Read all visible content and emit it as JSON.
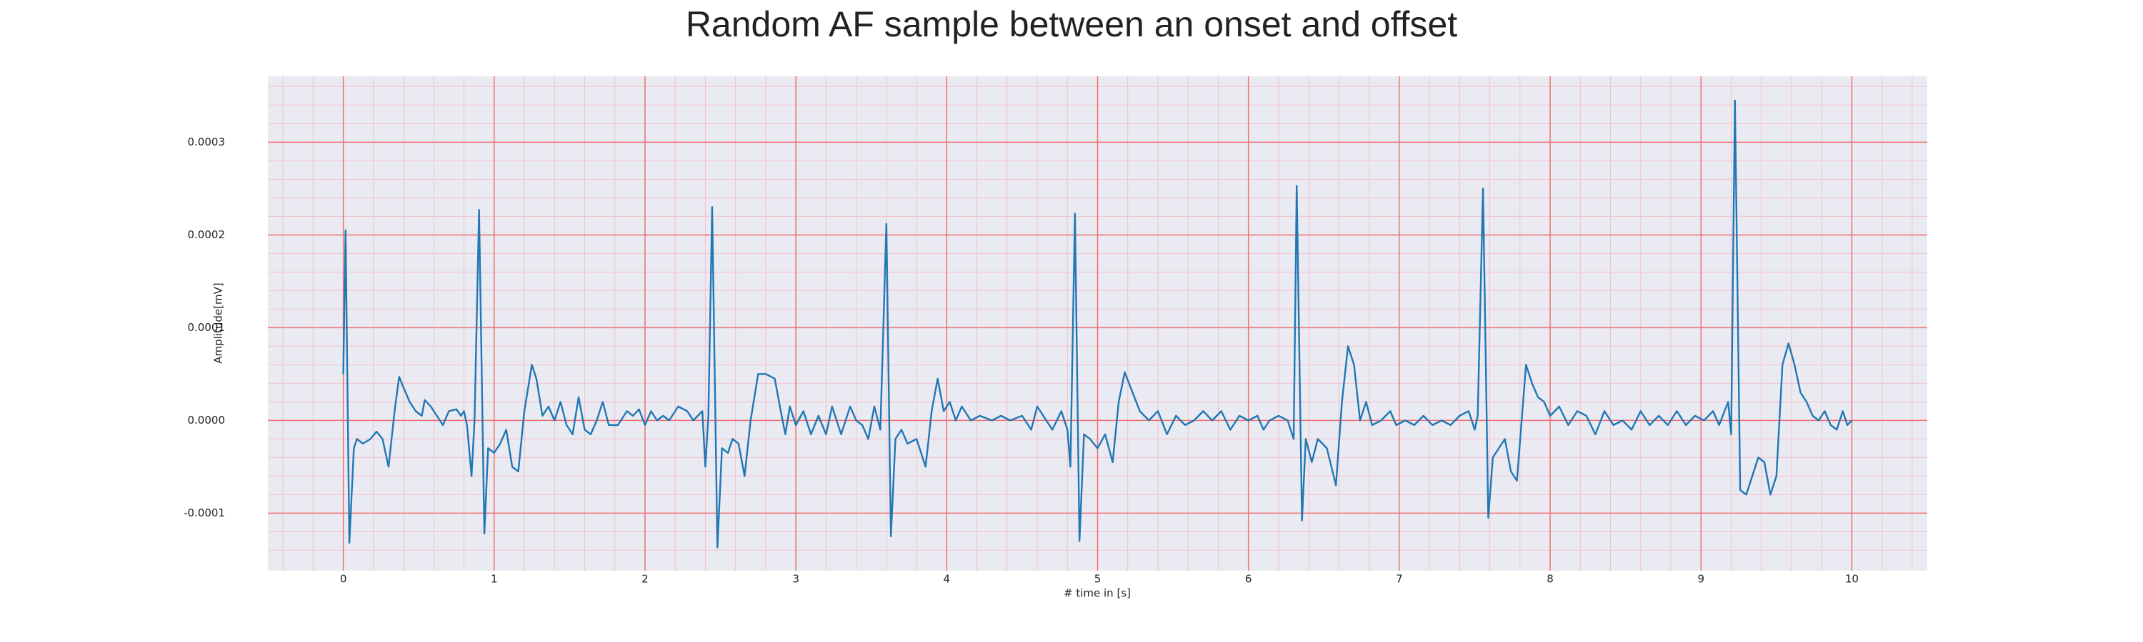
{
  "chart_data": {
    "type": "line",
    "title": "Random AF sample between an onset and offset",
    "xlabel": "# time in [s]",
    "ylabel": "Amplitude[mV]",
    "xlim": [
      -0.5,
      10.5
    ],
    "ylim": [
      -0.000162,
      0.000371
    ],
    "xticks": [
      0,
      1,
      2,
      3,
      4,
      5,
      6,
      7,
      8,
      9,
      10
    ],
    "yticks": [
      -0.0001,
      {
        "value": 0,
        "label": "0.0000"
      },
      0.0001,
      0.0002,
      0.0003
    ],
    "xminorticks": [
      -0.4,
      -0.2,
      0.2,
      0.4,
      0.6,
      0.8,
      1.2,
      1.4,
      1.6,
      1.8,
      2.2,
      2.4,
      2.6,
      2.8,
      3.2,
      3.4,
      3.6,
      3.8,
      4.2,
      4.4,
      4.6,
      4.8,
      5.2,
      5.4,
      5.6,
      5.8,
      6.2,
      6.4,
      6.6,
      6.8,
      7.2,
      7.4,
      7.6,
      7.8,
      8.2,
      8.4,
      8.6,
      8.8,
      9.2,
      9.4,
      9.6,
      9.8,
      10.2,
      10.4
    ],
    "yminorticks": [
      -0.00014,
      -0.00012,
      -8e-05,
      -6e-05,
      -4e-05,
      -2e-05,
      2e-05,
      4e-05,
      6e-05,
      8e-05,
      0.00012,
      0.00014,
      0.00016,
      0.00018,
      0.00022,
      0.00024,
      0.00026,
      0.00028,
      0.00032,
      0.00034,
      0.00036
    ],
    "grid": true,
    "grid_color": "#f07070",
    "minor_grid_color": "#f5c0c8",
    "background": "#eaeaf2",
    "x": [
      0,
      0.015,
      0.04,
      0.07,
      0.09,
      0.13,
      0.18,
      0.22,
      0.26,
      0.3,
      0.34,
      0.37,
      0.4,
      0.44,
      0.48,
      0.52,
      0.54,
      0.58,
      0.62,
      0.66,
      0.7,
      0.75,
      0.78,
      0.8,
      0.82,
      0.85,
      0.87,
      0.9,
      0.935,
      0.96,
      1,
      1.04,
      1.08,
      1.12,
      1.16,
      1.2,
      1.25,
      1.28,
      1.32,
      1.36,
      1.4,
      1.44,
      1.48,
      1.52,
      1.56,
      1.6,
      1.64,
      1.68,
      1.72,
      1.76,
      1.82,
      1.88,
      1.92,
      1.96,
      2,
      2.04,
      2.08,
      2.12,
      2.16,
      2.22,
      2.28,
      2.32,
      2.38,
      2.4,
      2.42,
      2.445,
      2.48,
      2.51,
      2.55,
      2.58,
      2.62,
      2.66,
      2.7,
      2.75,
      2.8,
      2.86,
      2.9,
      2.93,
      2.96,
      3,
      3.05,
      3.1,
      3.15,
      3.2,
      3.24,
      3.3,
      3.36,
      3.4,
      3.44,
      3.48,
      3.52,
      3.56,
      3.6,
      3.63,
      3.66,
      3.7,
      3.74,
      3.8,
      3.86,
      3.9,
      3.94,
      3.98,
      4.02,
      4.06,
      4.1,
      4.16,
      4.22,
      4.3,
      4.36,
      4.42,
      4.5,
      4.56,
      4.6,
      4.66,
      4.7,
      4.76,
      4.8,
      4.82,
      4.85,
      4.88,
      4.91,
      4.95,
      5,
      5.05,
      5.1,
      5.14,
      5.18,
      5.22,
      5.28,
      5.34,
      5.4,
      5.46,
      5.52,
      5.58,
      5.64,
      5.7,
      5.76,
      5.82,
      5.88,
      5.94,
      6,
      6.06,
      6.1,
      6.14,
      6.2,
      6.26,
      6.3,
      6.32,
      6.355,
      6.38,
      6.42,
      6.46,
      6.52,
      6.58,
      6.62,
      6.66,
      6.7,
      6.74,
      6.78,
      6.82,
      6.88,
      6.94,
      6.98,
      7.04,
      7.1,
      7.16,
      7.22,
      7.28,
      7.34,
      7.4,
      7.46,
      7.5,
      7.52,
      7.555,
      7.59,
      7.62,
      7.66,
      7.7,
      7.74,
      7.78,
      7.84,
      7.88,
      7.92,
      7.96,
      8,
      8.06,
      8.12,
      8.18,
      8.24,
      8.3,
      8.36,
      8.42,
      8.48,
      8.54,
      8.6,
      8.66,
      8.72,
      8.78,
      8.84,
      8.9,
      8.96,
      9.02,
      9.08,
      9.12,
      9.18,
      9.2,
      9.225,
      9.26,
      9.3,
      9.34,
      9.38,
      9.42,
      9.46,
      9.5,
      9.54,
      9.58,
      9.62,
      9.66,
      9.7,
      9.74,
      9.78,
      9.82,
      9.86,
      9.9,
      9.94,
      9.97,
      10
    ],
    "series": [
      {
        "color": "#1f77b4",
        "values": [
          5e-05,
          0.000205,
          -0.000132,
          -3e-05,
          -2e-05,
          -2.5e-05,
          -2e-05,
          -1.2e-05,
          -2e-05,
          -5e-05,
          1e-05,
          4.7e-05,
          3.5e-05,
          2e-05,
          1e-05,
          5e-06,
          2.2e-05,
          1.5e-05,
          5e-06,
          -5e-06,
          1e-05,
          1.2e-05,
          5e-06,
          1e-05,
          -5e-06,
          -6e-05,
          0,
          0.000227,
          -0.000122,
          -3e-05,
          -3.5e-05,
          -2.5e-05,
          -1e-05,
          -5e-05,
          -5.5e-05,
          1e-05,
          6e-05,
          4.5e-05,
          5e-06,
          1.5e-05,
          0,
          2e-05,
          -5e-06,
          -1.5e-05,
          2.5e-05,
          -1e-05,
          -1.5e-05,
          0,
          2e-05,
          -5e-06,
          -5e-06,
          1e-05,
          5e-06,
          1.2e-05,
          -5e-06,
          1e-05,
          0,
          5e-06,
          0,
          1.5e-05,
          1e-05,
          0,
          1e-05,
          -5e-05,
          5e-06,
          0.00023,
          -0.000137,
          -3e-05,
          -3.5e-05,
          -2e-05,
          -2.5e-05,
          -6e-05,
          0,
          5e-05,
          5e-05,
          4.5e-05,
          1e-05,
          -1.5e-05,
          1.5e-05,
          -5e-06,
          1e-05,
          -1.5e-05,
          5e-06,
          -1.5e-05,
          1.5e-05,
          -1.5e-05,
          1.5e-05,
          0,
          -5e-06,
          -2e-05,
          1.5e-05,
          -1e-05,
          0.000212,
          -0.000125,
          -2e-05,
          -1e-05,
          -2.5e-05,
          -2e-05,
          -5e-05,
          1e-05,
          4.5e-05,
          1e-05,
          2e-05,
          0,
          1.5e-05,
          0,
          5e-06,
          0,
          5e-06,
          0,
          5e-06,
          -1e-05,
          1.5e-05,
          0,
          -1e-05,
          1e-05,
          -1e-05,
          -5e-05,
          0.000223,
          -0.00013,
          -1.5e-05,
          -2e-05,
          -3e-05,
          -1.5e-05,
          -4.5e-05,
          2e-05,
          5.2e-05,
          3.5e-05,
          1e-05,
          0,
          1e-05,
          -1.5e-05,
          5e-06,
          -5e-06,
          0,
          1e-05,
          0,
          1e-05,
          -1e-05,
          5e-06,
          0,
          5e-06,
          -1e-05,
          0,
          5e-06,
          0,
          -2e-05,
          0.000253,
          -0.000108,
          -2e-05,
          -4.5e-05,
          -2e-05,
          -3e-05,
          -7e-05,
          2e-05,
          8e-05,
          6e-05,
          0,
          2e-05,
          -5e-06,
          0,
          1e-05,
          -5e-06,
          0,
          -5e-06,
          5e-06,
          -5e-06,
          0,
          -5e-06,
          5e-06,
          1e-05,
          -1e-05,
          5e-06,
          0.00025,
          -0.000105,
          -4e-05,
          -3e-05,
          -2e-05,
          -5.5e-05,
          -6.5e-05,
          6e-05,
          4e-05,
          2.5e-05,
          2e-05,
          5e-06,
          1.5e-05,
          -5e-06,
          1e-05,
          5e-06,
          -1.5e-05,
          1e-05,
          -5e-06,
          0,
          -1e-05,
          1e-05,
          -5e-06,
          5e-06,
          -5e-06,
          1e-05,
          -5e-06,
          5e-06,
          0,
          1e-05,
          -5e-06,
          2e-05,
          -1.5e-05,
          0.000345,
          -7.5e-05,
          -8e-05,
          -6e-05,
          -4e-05,
          -4.5e-05,
          -8e-05,
          -6e-05,
          6e-05,
          8.3e-05,
          6e-05,
          3e-05,
          2e-05,
          5e-06,
          0,
          1e-05,
          -5e-06,
          -1e-05,
          1e-05,
          -5e-06,
          0
        ]
      }
    ]
  }
}
